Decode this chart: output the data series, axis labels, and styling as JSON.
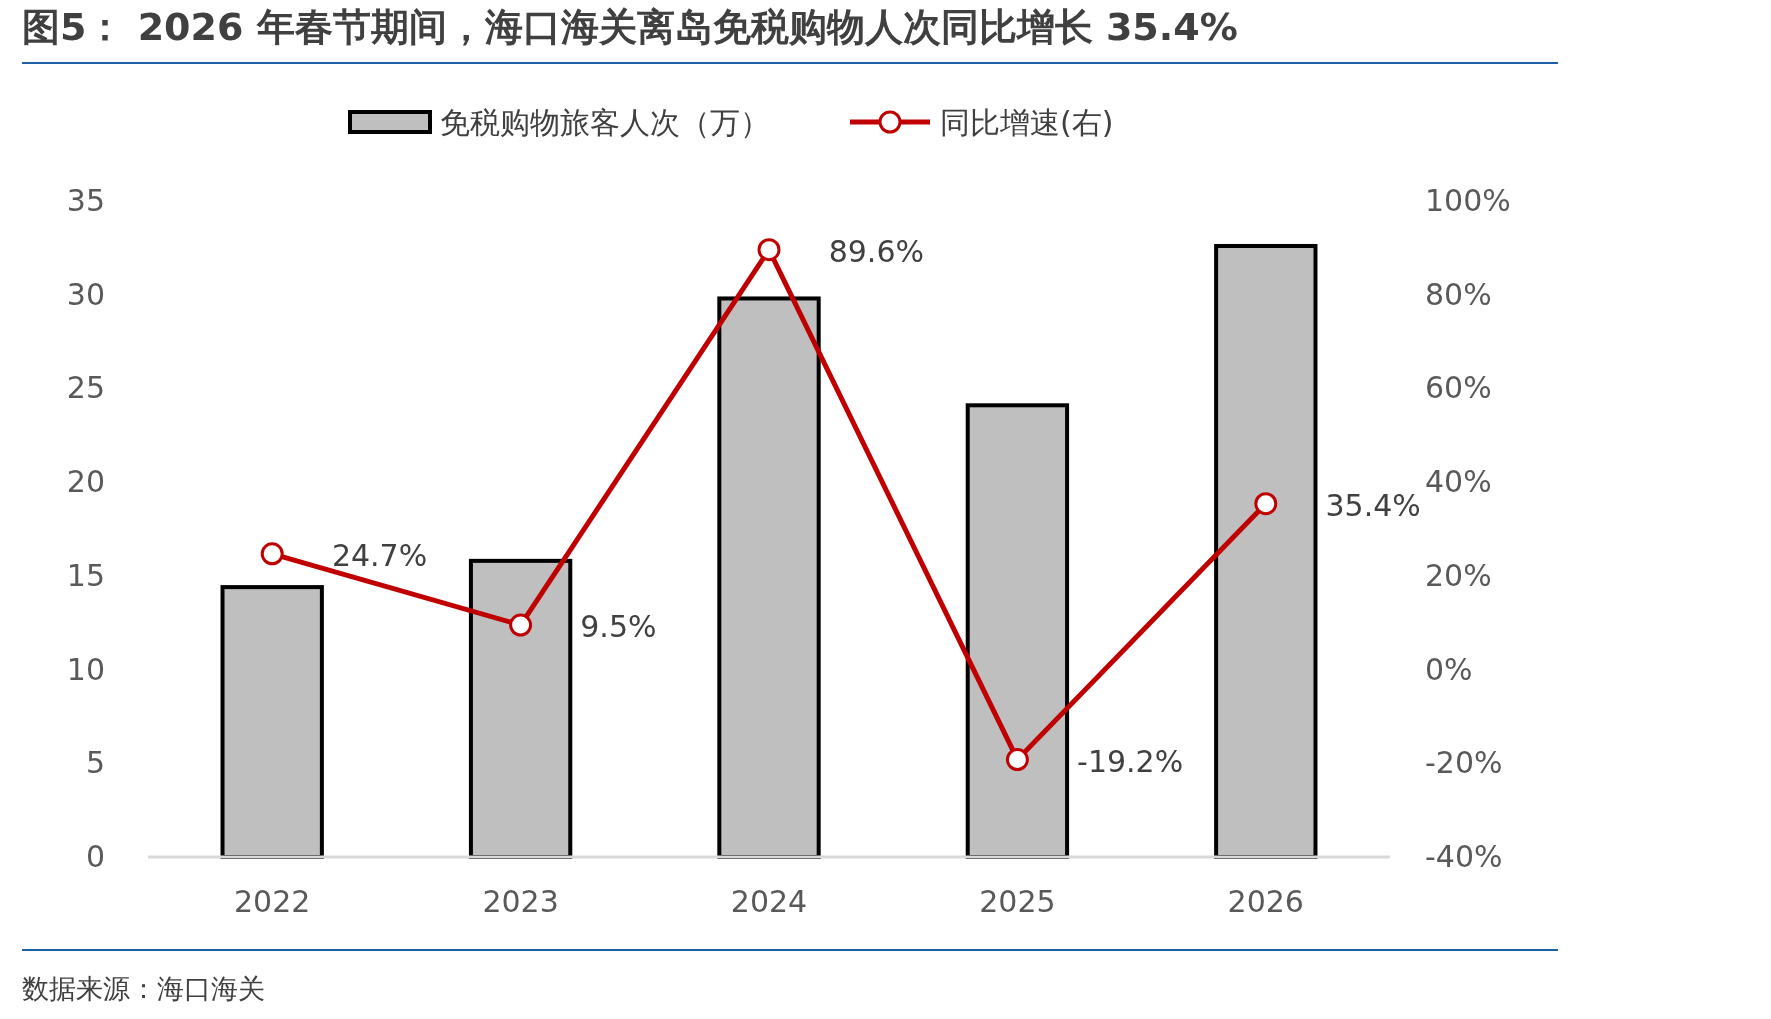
{
  "chart_data": {
    "type": "bar",
    "title": "图5： 2026 年春节期间，海口海关离岛免税购物人次同比增长 35.4%",
    "categories": [
      "2022",
      "2023",
      "2024",
      "2025",
      "2026"
    ],
    "series": [
      {
        "name": "免税购物旅客人次（万）",
        "color": "#bfbfbf",
        "values": [
          14.4,
          15.8,
          29.8,
          24.1,
          32.6
        ]
      },
      {
        "name": "同比增速(右)",
        "type": "line",
        "axis": "y2",
        "color": "#c00000",
        "marker": "circle",
        "values": [
          24.7,
          9.5,
          89.6,
          -19.2,
          35.4
        ],
        "value_labels": [
          "24.7%",
          "9.5%",
          "89.6%",
          "-19.2%",
          "35.4%"
        ]
      }
    ],
    "ylim": [
      0,
      35
    ],
    "yticks": [
      0,
      5,
      10,
      15,
      20,
      25,
      30,
      35
    ],
    "y2lim": [
      -40,
      100
    ],
    "y2ticks": [
      {
        "value": -40,
        "label": "-40%"
      },
      {
        "value": -20,
        "label": "-20%"
      },
      {
        "value": 0,
        "label": "0%"
      },
      {
        "value": 20,
        "label": "20%"
      },
      {
        "value": 40,
        "label": "40%"
      },
      {
        "value": 60,
        "label": "60%"
      },
      {
        "value": 80,
        "label": "80%"
      },
      {
        "value": 100,
        "label": "100%"
      }
    ],
    "legend": "top",
    "grid": false,
    "annotations": [
      "数据来源：海口海关"
    ]
  }
}
